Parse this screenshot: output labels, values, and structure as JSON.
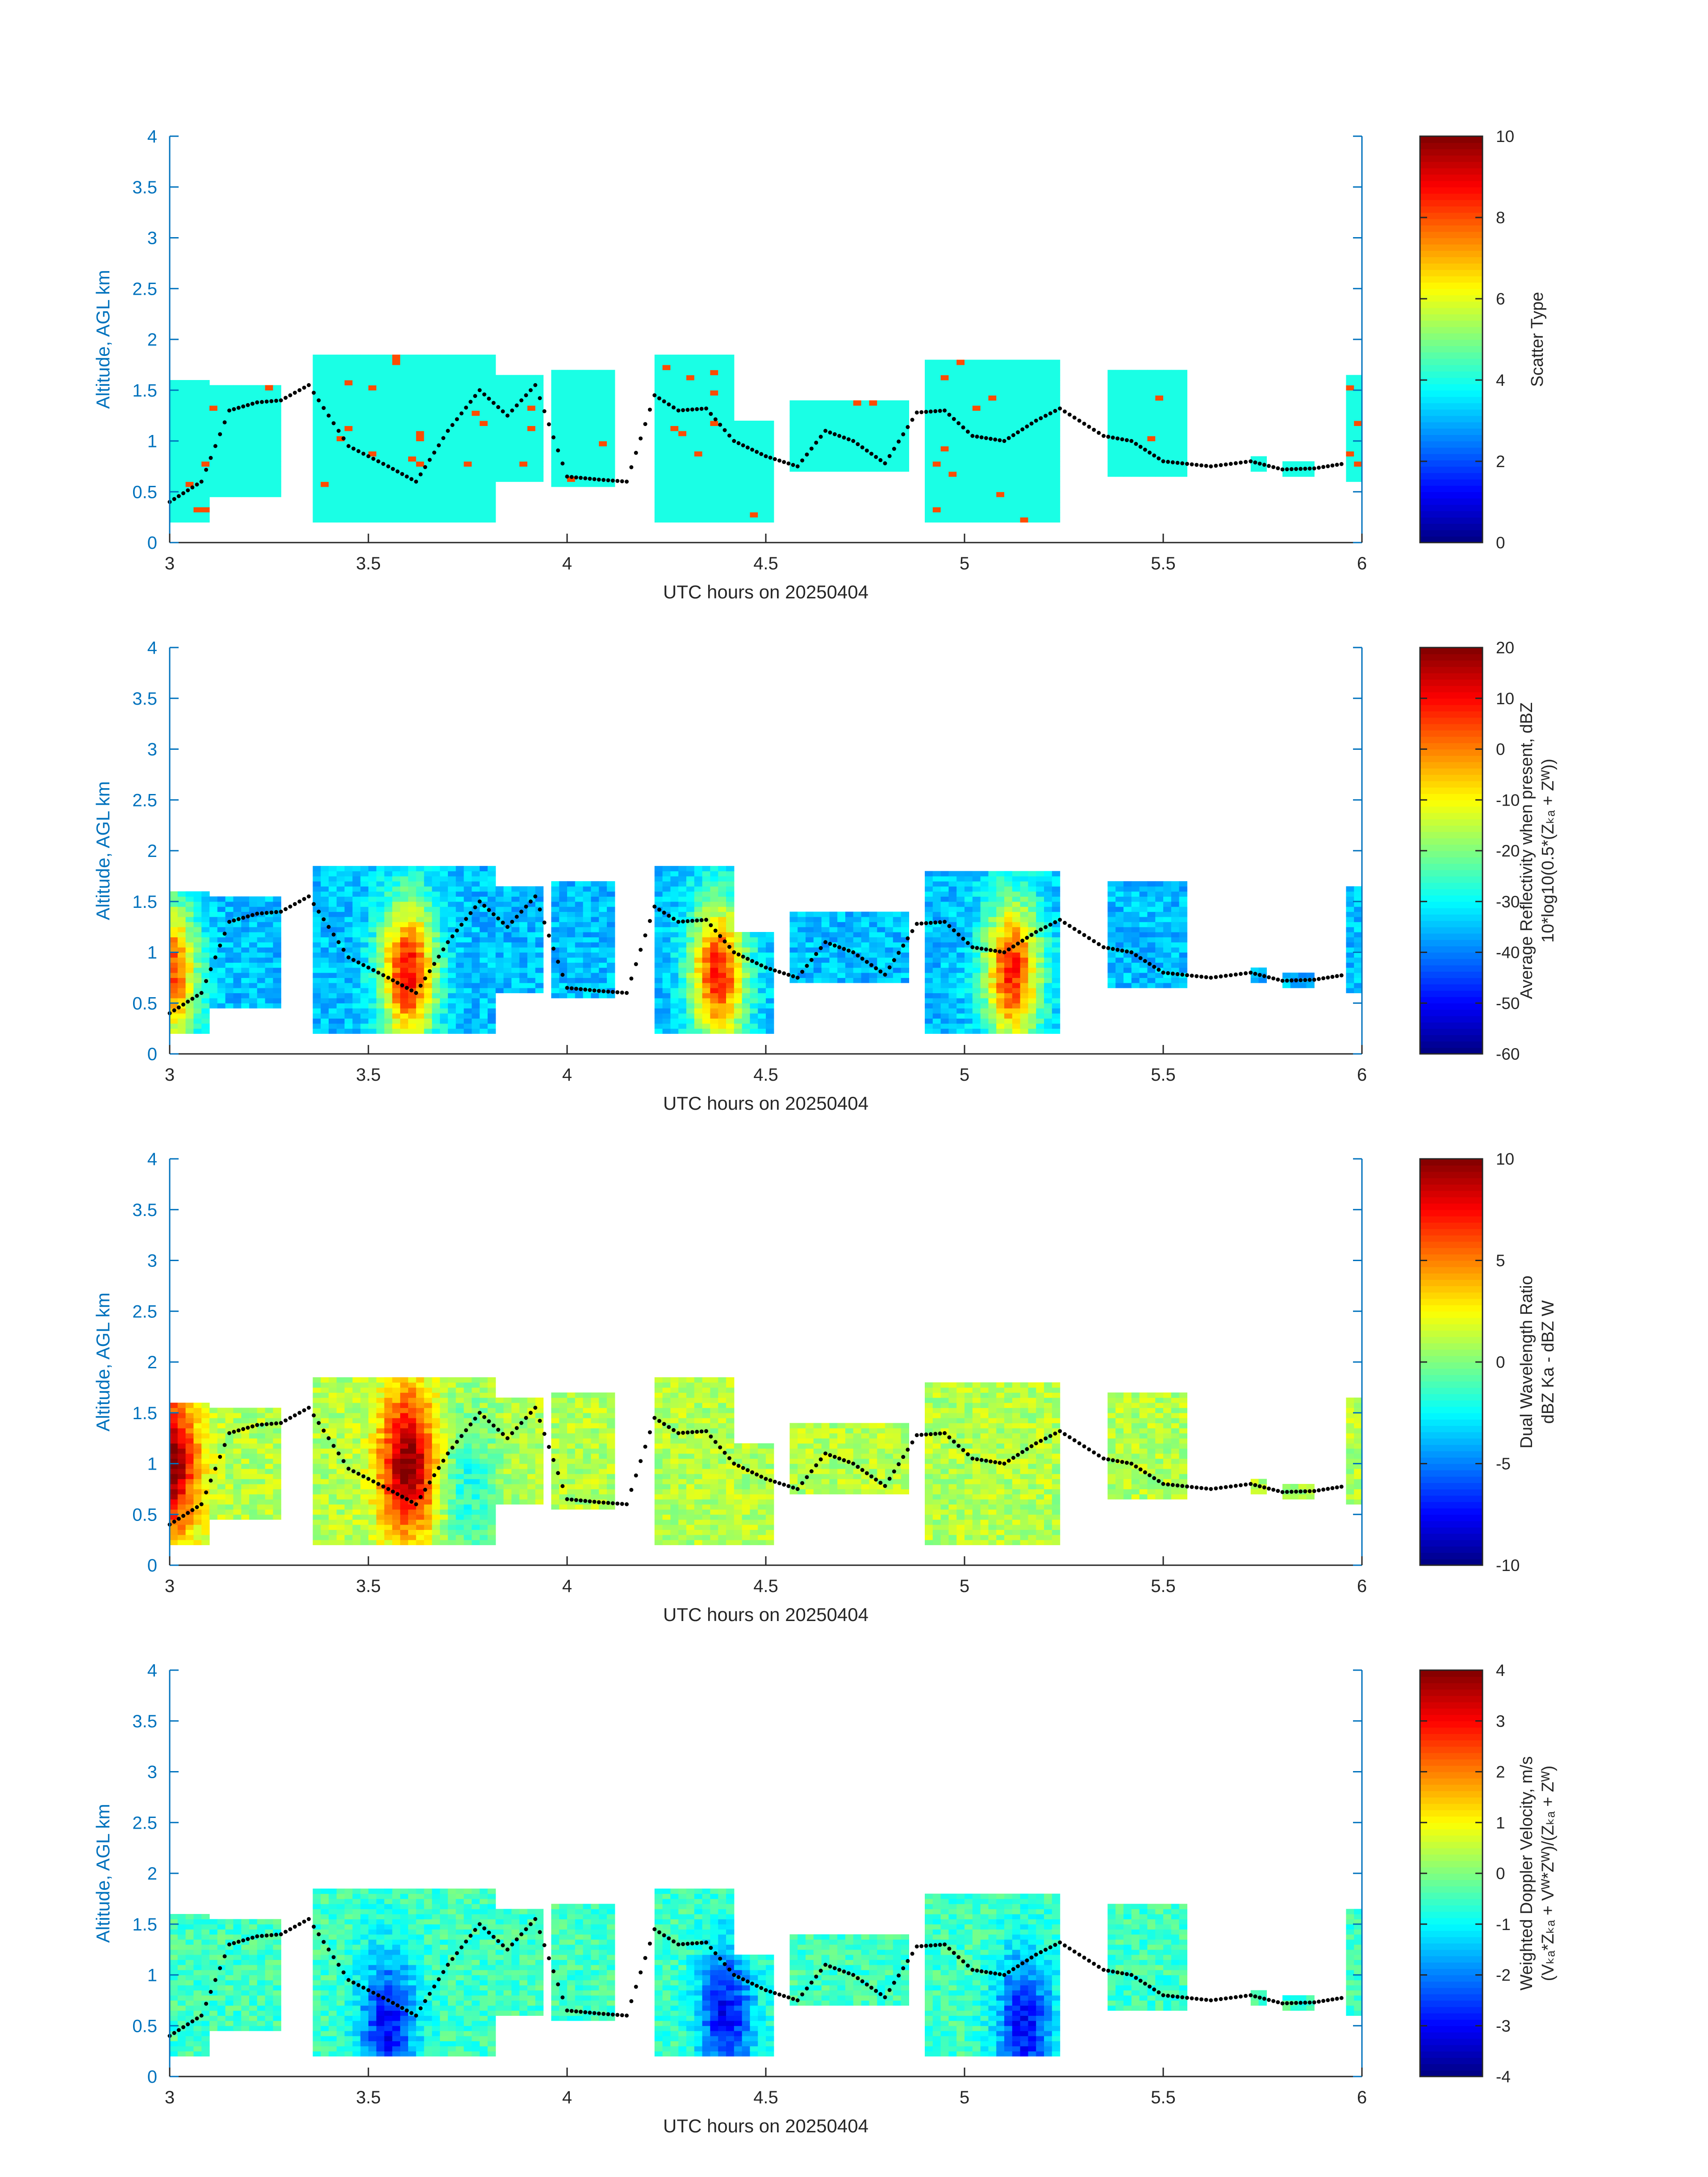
{
  "figure": {
    "panels": [
      {
        "id": "scatter-type",
        "xlabel": "UTC hours on 20250404",
        "ylabel": "Altitude, AGL km",
        "cbar_label_lines": [
          "Scatter Type"
        ],
        "cbar_ticks": [
          "0",
          "2",
          "4",
          "6",
          "8",
          "10"
        ]
      },
      {
        "id": "reflectivity",
        "xlabel": "UTC hours on 20250404",
        "ylabel": "Altitude, AGL km",
        "cbar_label_lines": [
          "Average Reflectivity when present, dBZ",
          "10*log10(0.5*(Zₖₐ + Zᵂ))"
        ],
        "cbar_ticks": [
          "-60",
          "-50",
          "-40",
          "-30",
          "-20",
          "-10",
          "0",
          "10",
          "20"
        ]
      },
      {
        "id": "dwr",
        "xlabel": "UTC hours on 20250404",
        "ylabel": "Altitude, AGL km",
        "cbar_label_lines": [
          "Dual Wavelength Ratio",
          "dBZ Ka - dBZ W"
        ],
        "cbar_ticks": [
          "-10",
          "-5",
          "0",
          "5",
          "10"
        ]
      },
      {
        "id": "doppler",
        "xlabel": "UTC hours on 20250404",
        "ylabel": "Altitude, AGL km",
        "cbar_label_lines": [
          "Weighted Doppler Velocity, m/s",
          "(Vₖₐ*Zₖₐ + Vᵂ*Zᵂ)/(Zₖₐ + Zᵂ)"
        ],
        "cbar_ticks": [
          "-4",
          "-3",
          "-2",
          "-1",
          "0",
          "1",
          "2",
          "3",
          "4"
        ]
      }
    ]
  },
  "chart_data": [
    {
      "type": "heatmap",
      "title": "",
      "xlabel": "UTC hours on 20250404",
      "ylabel": "Altitude, AGL km",
      "xlim": [
        3,
        6
      ],
      "ylim": [
        0,
        4
      ],
      "xticks": [
        3,
        3.5,
        4,
        4.5,
        5,
        5.5,
        6
      ],
      "yticks": [
        0,
        0.5,
        1,
        1.5,
        2,
        2.5,
        3,
        3.5,
        4
      ],
      "colorbar": {
        "label": "Scatter Type",
        "clim": [
          0,
          10
        ],
        "ticks": [
          0,
          2,
          4,
          6,
          8,
          10
        ],
        "colormap": "jet"
      },
      "dominant_value": 4,
      "cloud_regions": [
        {
          "x0": 3.0,
          "x1": 3.1,
          "ybot": 0.2,
          "ytop": 1.62
        },
        {
          "x0": 3.1,
          "x1": 3.28,
          "ybot": 0.45,
          "ytop": 1.55
        },
        {
          "x0": 3.36,
          "x1": 3.82,
          "ybot": 0.2,
          "ytop": 1.85
        },
        {
          "x0": 3.82,
          "x1": 3.94,
          "ybot": 0.6,
          "ytop": 1.65
        },
        {
          "x0": 3.96,
          "x1": 4.12,
          "ybot": 0.55,
          "ytop": 1.7
        },
        {
          "x0": 4.22,
          "x1": 4.42,
          "ybot": 0.2,
          "ytop": 1.85
        },
        {
          "x0": 4.42,
          "x1": 4.52,
          "ybot": 0.2,
          "ytop": 1.2
        },
        {
          "x0": 4.55,
          "x1": 4.85,
          "ybot": 0.7,
          "ytop": 1.4
        },
        {
          "x0": 4.9,
          "x1": 5.24,
          "ybot": 0.2,
          "ytop": 1.78
        },
        {
          "x0": 5.35,
          "x1": 5.55,
          "ybot": 0.65,
          "ytop": 1.7
        },
        {
          "x0": 5.72,
          "x1": 5.75,
          "ybot": 0.72,
          "ytop": 0.85
        },
        {
          "x0": 5.8,
          "x1": 5.88,
          "ybot": 0.65,
          "ytop": 0.8
        },
        {
          "x0": 5.96,
          "x1": 6.0,
          "ybot": 0.6,
          "ytop": 1.65
        }
      ],
      "dotted_line": {
        "x": [
          3.0,
          3.08,
          3.15,
          3.22,
          3.28,
          3.35,
          3.45,
          3.55,
          3.62,
          3.7,
          3.78,
          3.85,
          3.92,
          4.0,
          4.08,
          4.15,
          4.22,
          4.28,
          4.35,
          4.42,
          4.5,
          4.58,
          4.65,
          4.72,
          4.8,
          4.88,
          4.95,
          5.02,
          5.1,
          5.18,
          5.24,
          5.35,
          5.42,
          5.5,
          5.62,
          5.72,
          5.8,
          5.88,
          5.96
        ],
        "y": [
          0.4,
          0.6,
          1.3,
          1.38,
          1.4,
          1.55,
          0.95,
          0.75,
          0.6,
          1.1,
          1.5,
          1.25,
          1.55,
          0.65,
          0.62,
          0.6,
          1.45,
          1.3,
          1.32,
          1.0,
          0.85,
          0.75,
          1.1,
          1.0,
          0.78,
          1.28,
          1.3,
          1.05,
          1.0,
          1.2,
          1.32,
          1.05,
          1.0,
          0.8,
          0.75,
          0.8,
          0.72,
          0.73,
          0.78
        ]
      }
    },
    {
      "type": "heatmap",
      "title": "",
      "xlabel": "UTC hours on 20250404",
      "ylabel": "Altitude, AGL km",
      "xlim": [
        3,
        6
      ],
      "ylim": [
        0,
        4
      ],
      "xticks": [
        3,
        3.5,
        4,
        4.5,
        5,
        5.5,
        6
      ],
      "yticks": [
        0,
        0.5,
        1,
        1.5,
        2,
        2.5,
        3,
        3.5,
        4
      ],
      "colorbar": {
        "label": "Average Reflectivity when present, dBZ / 10*log10(0.5*(Z_Ka + Z_W))",
        "clim": [
          -60,
          20
        ],
        "ticks": [
          -60,
          -50,
          -40,
          -30,
          -20,
          -10,
          0,
          10,
          20
        ],
        "colormap": "jet"
      },
      "cores": [
        {
          "x": 3.0,
          "y": 0.8,
          "value": 5
        },
        {
          "x": 3.6,
          "y": 0.8,
          "value": 10
        },
        {
          "x": 4.38,
          "y": 0.8,
          "value": 8
        },
        {
          "x": 5.12,
          "y": 0.8,
          "value": 8
        }
      ]
    },
    {
      "type": "heatmap",
      "title": "",
      "xlabel": "UTC hours on 20250404",
      "ylabel": "Altitude, AGL km",
      "xlim": [
        3,
        6
      ],
      "ylim": [
        0,
        4
      ],
      "xticks": [
        3,
        3.5,
        4,
        4.5,
        5,
        5.5,
        6
      ],
      "yticks": [
        0,
        0.5,
        1,
        1.5,
        2,
        2.5,
        3,
        3.5,
        4
      ],
      "colorbar": {
        "label": "Dual Wavelength Ratio / dBZ_Ka - dBZ_W",
        "clim": [
          -10,
          10
        ],
        "ticks": [
          -10,
          -5,
          0,
          5,
          10
        ],
        "colormap": "jet"
      },
      "cores": [
        {
          "x": 3.0,
          "y": 1.0,
          "value": 10
        },
        {
          "x": 3.6,
          "y": 1.0,
          "value": 10
        },
        {
          "x": 3.75,
          "y": 0.8,
          "value": -2
        }
      ]
    },
    {
      "type": "heatmap",
      "title": "",
      "xlabel": "UTC hours on 20250404",
      "ylabel": "Altitude, AGL km",
      "xlim": [
        3,
        6
      ],
      "ylim": [
        0,
        4
      ],
      "xticks": [
        3,
        3.5,
        4,
        4.5,
        5,
        5.5,
        6
      ],
      "yticks": [
        0,
        0.5,
        1,
        1.5,
        2,
        2.5,
        3,
        3.5,
        4
      ],
      "colorbar": {
        "label": "Weighted Doppler Velocity, m/s / (V_Ka*Z_Ka + V_W*Z_W)/(Z_Ka + Z_W)",
        "clim": [
          -4,
          4
        ],
        "ticks": [
          -4,
          -3,
          -2,
          -1,
          0,
          1,
          2,
          3,
          4
        ],
        "colormap": "jet"
      },
      "cores": [
        {
          "x": 3.55,
          "y": 0.5,
          "value": -3
        },
        {
          "x": 4.4,
          "y": 0.6,
          "value": -3
        },
        {
          "x": 5.15,
          "y": 0.5,
          "value": -3
        }
      ]
    }
  ]
}
